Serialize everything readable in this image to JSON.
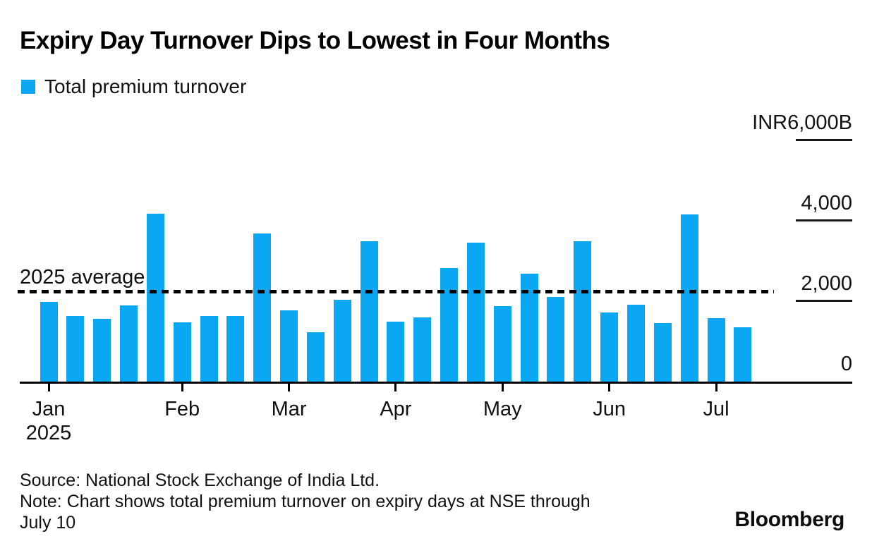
{
  "header": {
    "title": "Expiry Day Turnover Dips to Lowest in Four Months",
    "legend": {
      "label": "Total premium turnover",
      "swatch_color": "#0ba7f2"
    }
  },
  "axis": {
    "y_labels": [
      {
        "text": "INR6,000B",
        "value": 6000
      },
      {
        "text": "4,000",
        "value": 4000
      },
      {
        "text": "2,000",
        "value": 2000
      },
      {
        "text": "0",
        "value": 0
      }
    ],
    "x_months": [
      {
        "label": "Jan",
        "sub": "2025",
        "start_bar_index": 0
      },
      {
        "label": "Feb",
        "start_bar_index": 5
      },
      {
        "label": "Mar",
        "start_bar_index": 9
      },
      {
        "label": "Apr",
        "start_bar_index": 13
      },
      {
        "label": "May",
        "start_bar_index": 17
      },
      {
        "label": "Jun",
        "start_bar_index": 21
      },
      {
        "label": "Jul",
        "start_bar_index": 25
      }
    ]
  },
  "average": {
    "label": "2025 average",
    "value": 2240
  },
  "footer": {
    "lines": [
      "Source: National Stock Exchange of India Ltd.",
      "Note: Chart shows total premium turnover on expiry days at NSE through",
      "July 10"
    ],
    "brand": "Bloomberg"
  },
  "chart_data": {
    "type": "bar",
    "title": "Expiry Day Turnover Dips to Lowest in Four Months",
    "series_name": "Total premium turnover",
    "unit": "INR billions",
    "ylabel": "Total premium turnover (INR B)",
    "ylim": [
      0,
      6000
    ],
    "yticks": [
      0,
      2000,
      4000,
      6000
    ],
    "grid": false,
    "legend_position": "top-left",
    "bar_color": "#0ba7f2",
    "categories": [
      "Jan",
      "Jan",
      "Jan",
      "Jan",
      "Jan",
      "Feb",
      "Feb",
      "Feb",
      "Feb",
      "Mar",
      "Mar",
      "Mar",
      "Mar",
      "Apr",
      "Apr",
      "Apr",
      "Apr",
      "May",
      "May",
      "May",
      "May",
      "Jun",
      "Jun",
      "Jun",
      "Jun",
      "Jul",
      "Jul"
    ],
    "values": [
      1990,
      1630,
      1570,
      1900,
      4180,
      1470,
      1640,
      1630,
      3680,
      1770,
      1230,
      2040,
      3500,
      1490,
      1590,
      2820,
      3460,
      1870,
      2680,
      2100,
      3500,
      1720,
      1910,
      1460,
      4150,
      1580,
      1350
    ],
    "average_line": {
      "label": "2025 average",
      "value": 2240
    }
  }
}
